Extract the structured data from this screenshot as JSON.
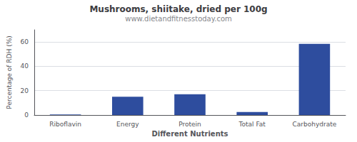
{
  "chart_data": {
    "type": "bar",
    "title": "Mushrooms, shiitake, dried per 100g",
    "subtitle": "www.dietandfitnesstoday.com",
    "categories": [
      "Riboflavin",
      "Energy",
      "Protein",
      "Total Fat",
      "Carbohydrate"
    ],
    "values": [
      0.4,
      15,
      17,
      2.5,
      58.5
    ],
    "color": "#2e4d9e",
    "xlabel": "Different Nutrients",
    "ylabel": "Percentage of RDH (%)",
    "ylim": [
      0,
      70
    ],
    "yticks": [
      0,
      20,
      40,
      60
    ],
    "grid": true
  }
}
